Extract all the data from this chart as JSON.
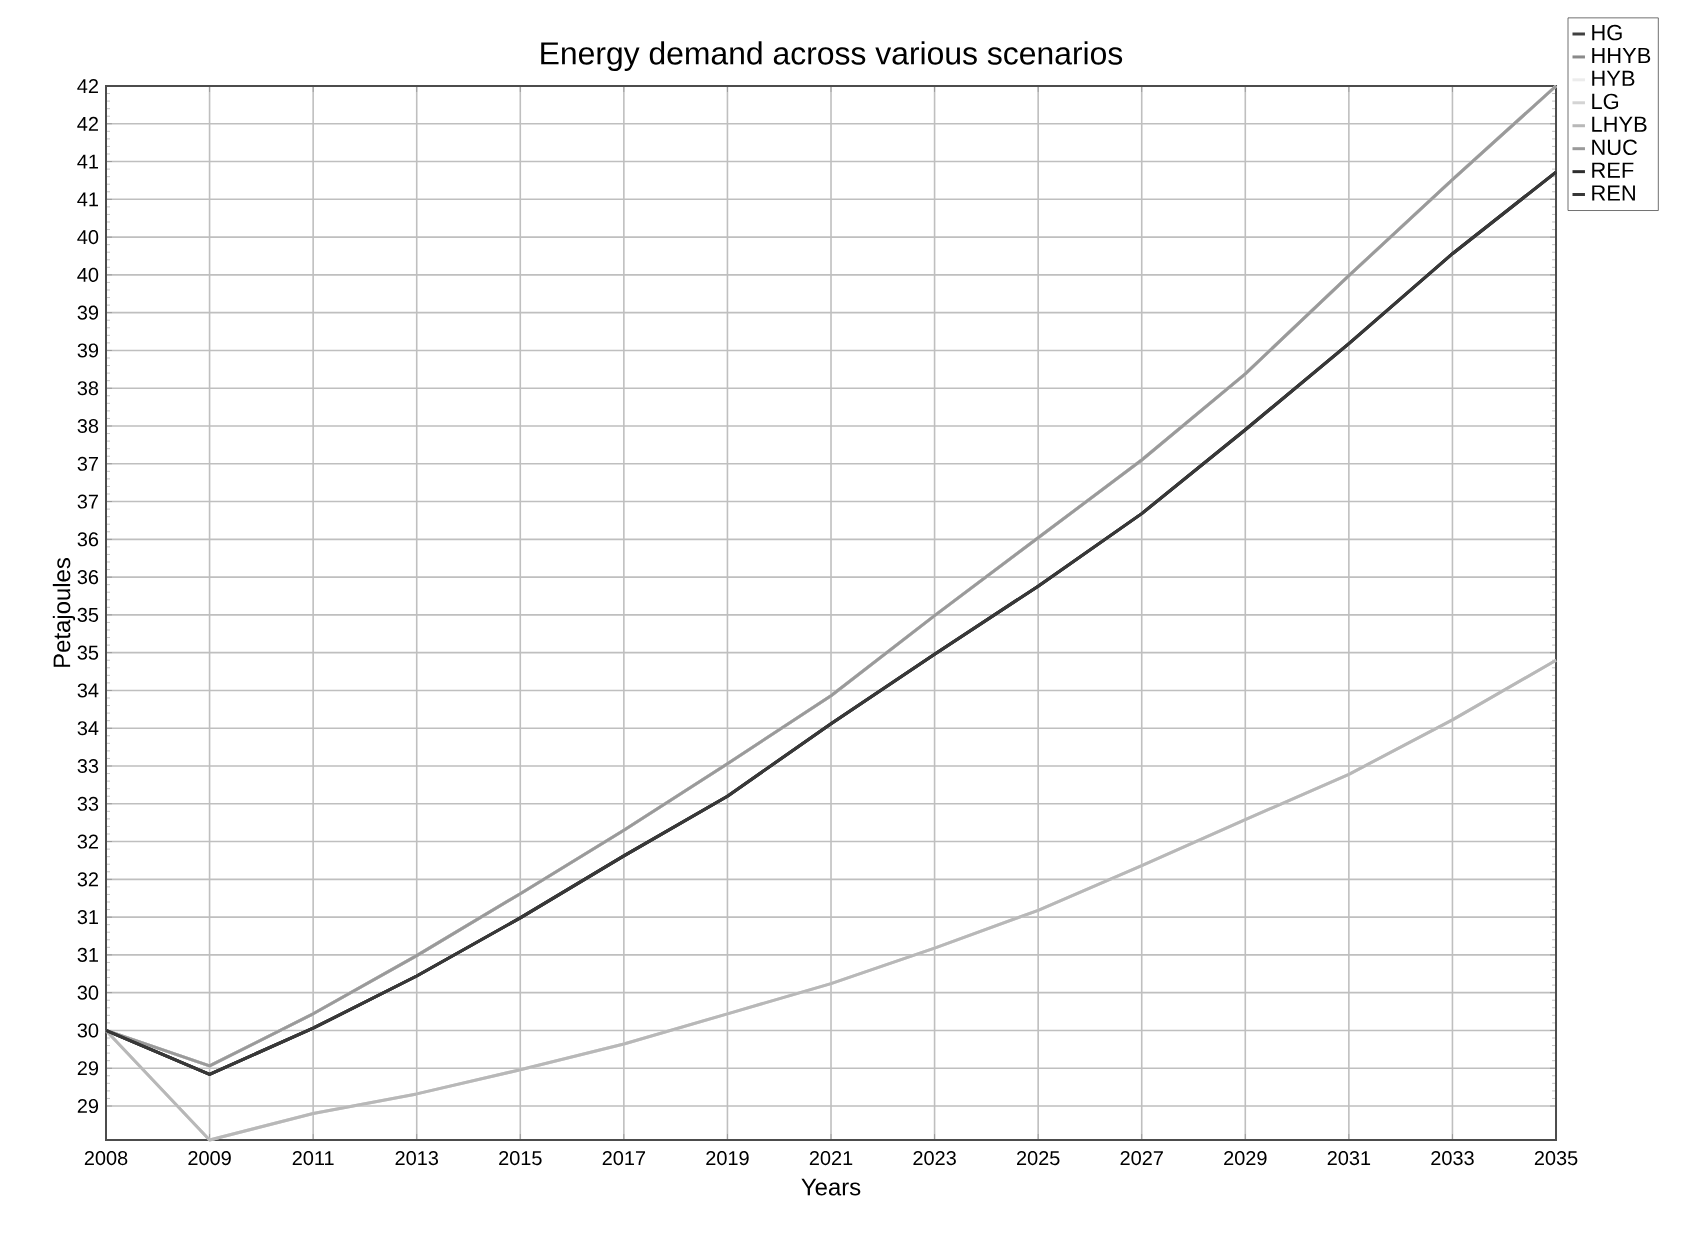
{
  "chart_data": {
    "type": "line",
    "title": "Energy demand across various scenarios",
    "xlabel": "Years",
    "ylabel": "Petajoules",
    "categories": [
      "2008",
      "2009",
      "2011",
      "2013",
      "2015",
      "2017",
      "2019",
      "2021",
      "2023",
      "2025",
      "2027",
      "2029",
      "2031",
      "2033",
      "2035"
    ],
    "series": [
      {
        "name": "HG",
        "color": "#404040",
        "values": [
          29.5,
          28.92,
          29.53,
          30.22,
          30.99,
          31.81,
          32.6,
          33.56,
          34.48,
          35.38,
          36.34,
          37.45,
          38.59,
          39.78,
          40.86
        ]
      },
      {
        "name": "HHYB",
        "color": "#8a8a8a",
        "values": [
          29.5,
          29.03,
          29.72,
          30.49,
          31.31,
          32.15,
          33.03,
          33.93,
          34.99,
          36.02,
          37.05,
          38.19,
          39.49,
          40.76,
          42.0
        ]
      },
      {
        "name": "HYB",
        "color": "#ececec",
        "values": [
          29.5,
          29.03,
          29.72,
          30.49,
          31.31,
          32.15,
          33.03,
          33.93,
          34.99,
          36.02,
          37.05,
          38.19,
          39.49,
          40.76,
          42.0
        ]
      },
      {
        "name": "LG",
        "color": "#d4d4d4",
        "values": [
          29.5,
          28.05,
          28.4,
          28.66,
          28.98,
          29.32,
          29.72,
          30.12,
          30.59,
          31.09,
          31.68,
          32.29,
          32.89,
          33.61,
          34.4
        ]
      },
      {
        "name": "LHYB",
        "color": "#b8b8b8",
        "values": [
          29.5,
          28.05,
          28.4,
          28.66,
          28.98,
          29.32,
          29.72,
          30.12,
          30.59,
          31.09,
          31.68,
          32.29,
          32.89,
          33.61,
          34.4
        ]
      },
      {
        "name": "NUC",
        "color": "#9a9a9a",
        "values": [
          29.5,
          29.03,
          29.72,
          30.49,
          31.31,
          32.15,
          33.03,
          33.93,
          34.99,
          36.02,
          37.05,
          38.19,
          39.49,
          40.76,
          42.0
        ]
      },
      {
        "name": "REF",
        "color": "#2e2e2e",
        "values": [
          29.5,
          28.92,
          29.53,
          30.22,
          30.99,
          31.81,
          32.6,
          33.56,
          34.48,
          35.38,
          36.34,
          37.45,
          38.59,
          39.78,
          40.86
        ]
      },
      {
        "name": "REN",
        "color": "#383838",
        "values": [
          29.5,
          28.92,
          29.53,
          30.22,
          30.99,
          31.81,
          32.6,
          33.56,
          34.48,
          35.38,
          36.34,
          37.45,
          38.59,
          39.78,
          40.86
        ]
      }
    ],
    "ylim": [
      28.05,
      42
    ],
    "yticks": [
      {
        "value": 28.5,
        "label": "29"
      },
      29,
      {
        "value": 29.5,
        "label": "30"
      },
      30,
      {
        "value": 30.5,
        "label": "31"
      },
      31,
      {
        "value": 31.5,
        "label": "32"
      },
      32,
      {
        "value": 32.5,
        "label": "33"
      },
      33,
      {
        "value": 33.5,
        "label": "34"
      },
      34,
      {
        "value": 34.5,
        "label": "35"
      },
      35,
      {
        "value": 35.5,
        "label": "36"
      },
      36,
      {
        "value": 36.5,
        "label": "37"
      },
      37,
      {
        "value": 37.5,
        "label": "38"
      },
      38,
      {
        "value": 38.5,
        "label": "39"
      },
      39,
      {
        "value": 39.5,
        "label": "40"
      },
      40,
      {
        "value": 40.5,
        "label": "41"
      },
      41,
      {
        "value": 41.5,
        "label": "42"
      },
      42
    ],
    "grid": true,
    "legend": "top right"
  }
}
